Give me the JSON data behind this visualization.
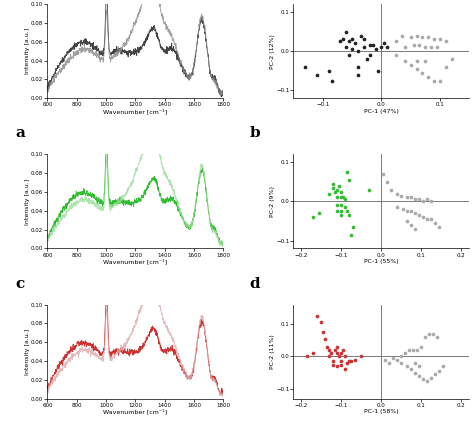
{
  "spectrum_xlabel": "Wavenumber [cm⁻¹]",
  "spectrum_ylabel": "Intensity [a.u.]",
  "spectrum_xlim": [
    600,
    1800
  ],
  "spectrum_ylim": [
    0.0,
    0.1
  ],
  "spectrum_yticks": [
    0.0,
    0.02,
    0.04,
    0.06,
    0.08,
    0.1
  ],
  "color_black": "#444444",
  "color_darkgray": "#888888",
  "color_green": "#33bb33",
  "color_lightgreen": "#99dd99",
  "color_red": "#cc3333",
  "color_lightred": "#ddaaaa",
  "color_gray": "#999999",
  "panel_b": {
    "xlabel": "PC-1 (47%)",
    "ylabel": "PC-2 (12%)",
    "xlim": [
      -0.15,
      0.15
    ],
    "ylim": [
      -0.12,
      0.12
    ],
    "xticks": [
      -0.1,
      0.0,
      0.1
    ],
    "yticks": [
      -0.1,
      0.0,
      0.1
    ],
    "dark_pts": [
      [
        -0.13,
        -0.04
      ],
      [
        -0.11,
        -0.06
      ],
      [
        -0.09,
        -0.05
      ],
      [
        -0.085,
        -0.075
      ],
      [
        -0.07,
        0.025
      ],
      [
        -0.065,
        0.03
      ],
      [
        -0.06,
        0.01
      ],
      [
        -0.055,
        0.025
      ],
      [
        -0.05,
        0.03
      ],
      [
        -0.05,
        0.005
      ],
      [
        -0.045,
        0.02
      ],
      [
        -0.04,
        0.0
      ],
      [
        -0.04,
        -0.04
      ],
      [
        -0.04,
        -0.06
      ],
      [
        -0.035,
        0.04
      ],
      [
        -0.03,
        0.03
      ],
      [
        -0.03,
        0.01
      ],
      [
        -0.025,
        -0.02
      ],
      [
        -0.02,
        0.015
      ],
      [
        -0.02,
        -0.01
      ],
      [
        -0.015,
        0.015
      ],
      [
        -0.01,
        0.005
      ],
      [
        -0.005,
        -0.05
      ],
      [
        0.0,
        0.01
      ],
      [
        0.005,
        0.02
      ],
      [
        0.01,
        0.01
      ],
      [
        -0.06,
        0.05
      ],
      [
        -0.055,
        -0.01
      ]
    ],
    "light_pts": [
      [
        0.025,
        0.025
      ],
      [
        0.035,
        0.04
      ],
      [
        0.05,
        0.035
      ],
      [
        0.06,
        0.04
      ],
      [
        0.07,
        0.035
      ],
      [
        0.08,
        0.035
      ],
      [
        0.09,
        0.03
      ],
      [
        0.1,
        0.03
      ],
      [
        0.11,
        0.025
      ],
      [
        0.04,
        0.01
      ],
      [
        0.055,
        0.015
      ],
      [
        0.065,
        0.015
      ],
      [
        0.075,
        0.01
      ],
      [
        0.085,
        0.01
      ],
      [
        0.095,
        0.01
      ],
      [
        0.04,
        -0.025
      ],
      [
        0.05,
        -0.035
      ],
      [
        0.06,
        -0.045
      ],
      [
        0.07,
        -0.055
      ],
      [
        0.08,
        -0.065
      ],
      [
        0.09,
        -0.075
      ],
      [
        0.1,
        -0.075
      ],
      [
        0.11,
        -0.04
      ],
      [
        0.12,
        -0.02
      ],
      [
        0.06,
        -0.025
      ],
      [
        0.075,
        -0.025
      ],
      [
        0.025,
        -0.01
      ]
    ]
  },
  "panel_d": {
    "xlabel": "PC-1 (55%)",
    "ylabel": "PC-2 (9%)",
    "xlim": [
      -0.22,
      0.22
    ],
    "ylim": [
      -0.12,
      0.12
    ],
    "xticks": [
      -0.2,
      -0.1,
      0.0,
      0.1,
      0.2
    ],
    "yticks": [
      -0.1,
      0.0,
      0.1
    ],
    "green_pts": [
      [
        -0.17,
        -0.04
      ],
      [
        -0.155,
        -0.03
      ],
      [
        -0.13,
        0.02
      ],
      [
        -0.12,
        0.035
      ],
      [
        -0.12,
        0.045
      ],
      [
        -0.115,
        0.025
      ],
      [
        -0.11,
        0.03
      ],
      [
        -0.11,
        0.01
      ],
      [
        -0.11,
        -0.01
      ],
      [
        -0.11,
        -0.025
      ],
      [
        -0.105,
        0.04
      ],
      [
        -0.1,
        0.025
      ],
      [
        -0.1,
        0.01
      ],
      [
        -0.1,
        -0.01
      ],
      [
        -0.1,
        -0.025
      ],
      [
        -0.1,
        -0.035
      ],
      [
        -0.095,
        0.01
      ],
      [
        -0.09,
        0.005
      ],
      [
        -0.09,
        -0.015
      ],
      [
        -0.085,
        -0.025
      ],
      [
        -0.08,
        -0.035
      ],
      [
        -0.085,
        0.075
      ],
      [
        -0.08,
        0.055
      ],
      [
        -0.075,
        -0.085
      ],
      [
        -0.07,
        -0.065
      ],
      [
        -0.03,
        0.03
      ]
    ],
    "gray_pts": [
      [
        0.005,
        0.07
      ],
      [
        0.015,
        0.05
      ],
      [
        0.025,
        0.03
      ],
      [
        0.04,
        0.02
      ],
      [
        0.05,
        0.015
      ],
      [
        0.065,
        0.01
      ],
      [
        0.075,
        0.01
      ],
      [
        0.085,
        0.005
      ],
      [
        0.095,
        0.005
      ],
      [
        0.105,
        0.0
      ],
      [
        0.115,
        0.005
      ],
      [
        0.125,
        0.0
      ],
      [
        0.04,
        -0.015
      ],
      [
        0.055,
        -0.02
      ],
      [
        0.065,
        -0.025
      ],
      [
        0.075,
        -0.025
      ],
      [
        0.085,
        -0.03
      ],
      [
        0.095,
        -0.035
      ],
      [
        0.105,
        -0.04
      ],
      [
        0.115,
        -0.045
      ],
      [
        0.125,
        -0.045
      ],
      [
        0.135,
        -0.055
      ],
      [
        0.145,
        -0.065
      ],
      [
        0.065,
        -0.05
      ],
      [
        0.075,
        -0.06
      ],
      [
        0.085,
        -0.07
      ]
    ]
  },
  "panel_f": {
    "xlabel": "PC-1 (58%)",
    "ylabel": "PC-2 (11%)",
    "xlim": [
      -0.22,
      0.22
    ],
    "ylim": [
      -0.13,
      0.16
    ],
    "xticks": [
      -0.2,
      -0.1,
      0.0,
      0.1,
      0.2
    ],
    "yticks": [
      -0.1,
      0.0,
      0.1
    ],
    "red_pts": [
      [
        -0.185,
        0.0
      ],
      [
        -0.17,
        0.01
      ],
      [
        -0.16,
        0.125
      ],
      [
        -0.15,
        0.105
      ],
      [
        -0.145,
        0.075
      ],
      [
        -0.14,
        0.055
      ],
      [
        -0.135,
        0.03
      ],
      [
        -0.13,
        0.02
      ],
      [
        -0.13,
        0.0
      ],
      [
        -0.125,
        0.01
      ],
      [
        -0.12,
        -0.015
      ],
      [
        -0.12,
        -0.025
      ],
      [
        -0.115,
        0.02
      ],
      [
        -0.11,
        0.03
      ],
      [
        -0.11,
        0.01
      ],
      [
        -0.11,
        -0.03
      ],
      [
        -0.105,
        0.0
      ],
      [
        -0.1,
        0.01
      ],
      [
        -0.1,
        -0.015
      ],
      [
        -0.1,
        -0.025
      ],
      [
        -0.095,
        0.02
      ],
      [
        -0.09,
        0.0
      ],
      [
        -0.09,
        -0.04
      ],
      [
        -0.085,
        -0.02
      ],
      [
        -0.08,
        -0.015
      ],
      [
        -0.075,
        -0.015
      ],
      [
        -0.065,
        -0.01
      ],
      [
        -0.05,
        0.0
      ]
    ],
    "gray_pts": [
      [
        0.01,
        -0.01
      ],
      [
        0.02,
        -0.02
      ],
      [
        0.04,
        -0.01
      ],
      [
        0.05,
        0.0
      ],
      [
        0.06,
        0.01
      ],
      [
        0.07,
        0.02
      ],
      [
        0.08,
        0.02
      ],
      [
        0.09,
        0.02
      ],
      [
        0.1,
        0.03
      ],
      [
        0.11,
        0.06
      ],
      [
        0.12,
        0.07
      ],
      [
        0.13,
        0.07
      ],
      [
        0.14,
        0.06
      ],
      [
        0.05,
        -0.02
      ],
      [
        0.065,
        -0.03
      ],
      [
        0.075,
        -0.04
      ],
      [
        0.085,
        -0.05
      ],
      [
        0.095,
        -0.06
      ],
      [
        0.105,
        -0.07
      ],
      [
        0.115,
        -0.075
      ],
      [
        0.125,
        -0.065
      ],
      [
        0.135,
        -0.055
      ],
      [
        0.145,
        -0.045
      ],
      [
        0.155,
        -0.03
      ],
      [
        0.085,
        -0.02
      ],
      [
        0.095,
        -0.03
      ],
      [
        0.03,
        -0.005
      ]
    ]
  }
}
